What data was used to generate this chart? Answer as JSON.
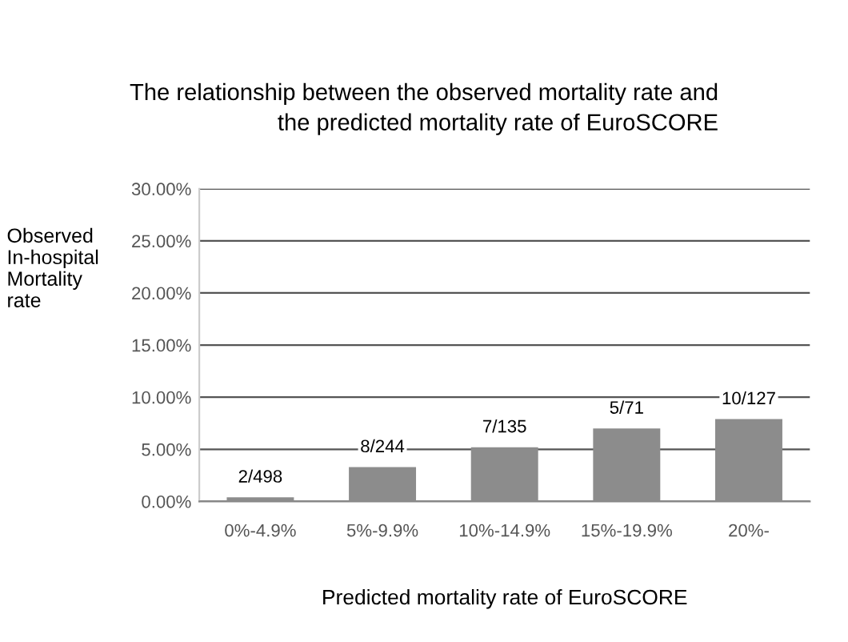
{
  "chart_data": {
    "type": "bar",
    "title": "The relationship between the observed mortality rate and\nthe predicted mortality rate of EuroSCORE",
    "xlabel": "Predicted mortality rate of EuroSCORE",
    "ylabel": "Observed\nIn-hospital\nMortality\nrate",
    "categories": [
      "0%-4.9%",
      "5%-9.9%",
      "10%-14.9%",
      "15%-19.9%",
      "20%-"
    ],
    "values": [
      0.4,
      3.3,
      5.2,
      7.0,
      7.9
    ],
    "value_labels": [
      "2/498",
      "8/244",
      "7/135",
      "5/71",
      "10/127"
    ],
    "color": "#8c8c8c",
    "ylim": [
      0,
      30
    ],
    "yticks": [
      {
        "value": 0,
        "label": "0.00%"
      },
      {
        "value": 5,
        "label": "5.00%"
      },
      {
        "value": 10,
        "label": "10.00%"
      },
      {
        "value": 15,
        "label": "15.00%"
      },
      {
        "value": 20,
        "label": "20.00%"
      },
      {
        "value": 25,
        "label": "25.00%"
      },
      {
        "value": 30,
        "label": "30.00%"
      }
    ],
    "grid": "y",
    "legend": false
  }
}
